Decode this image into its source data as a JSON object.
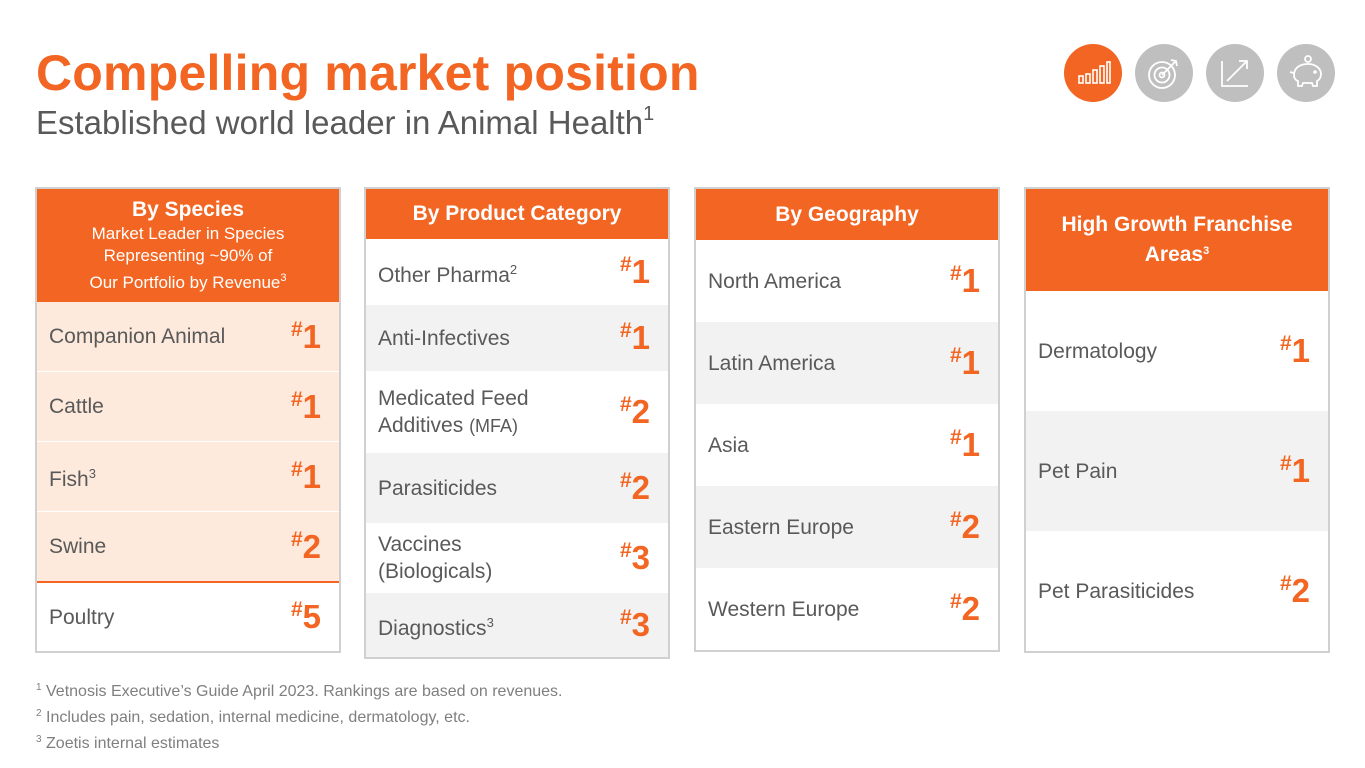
{
  "title": "Compelling market position",
  "subtitle": {
    "text": "Established world leader in Animal Health",
    "sup": "1"
  },
  "nav_icons": [
    {
      "name": "bar-chart-icon",
      "active": true
    },
    {
      "name": "target-icon",
      "active": false
    },
    {
      "name": "growth-arrow-icon",
      "active": false
    },
    {
      "name": "piggy-bank-icon",
      "active": false
    }
  ],
  "hash": "#",
  "species": {
    "heading": "By Species",
    "sub1": "Market Leader in Species",
    "sub2": "Representing ~90% of",
    "sub3": "Our Portfolio by Revenue",
    "sub3_sup": "3",
    "rows": [
      {
        "label": "Companion Animal",
        "rank": "1"
      },
      {
        "label": "Cattle",
        "rank": "1"
      },
      {
        "label": "Fish",
        "sup": "3",
        "rank": "1"
      },
      {
        "label": "Swine",
        "rank": "2"
      },
      {
        "label": "Poultry",
        "rank": "5"
      }
    ]
  },
  "product": {
    "heading": "By Product Category",
    "rows": [
      {
        "label": "Other Pharma",
        "sup": "2",
        "rank": "1"
      },
      {
        "label": "Anti-Infectives",
        "rank": "1"
      },
      {
        "label1": "Medicated Feed",
        "label2": "Additives",
        "label2_small": "(MFA)",
        "rank": "2"
      },
      {
        "label": "Parasiticides",
        "rank": "2"
      },
      {
        "label1": "Vaccines",
        "label2": "(Biologicals)",
        "rank": "3"
      },
      {
        "label": "Diagnostics",
        "sup": "3",
        "rank": "3"
      }
    ]
  },
  "geography": {
    "heading": "By Geography",
    "rows": [
      {
        "label": "North America",
        "rank": "1"
      },
      {
        "label": "Latin America",
        "rank": "1"
      },
      {
        "label": "Asia",
        "rank": "1"
      },
      {
        "label": "Eastern Europe",
        "rank": "2"
      },
      {
        "label": "Western Europe",
        "rank": "2"
      }
    ]
  },
  "franchise": {
    "heading1": "High Growth Franchise",
    "heading2": "Areas",
    "heading_sup": "3",
    "rows": [
      {
        "label": "Dermatology",
        "rank": "1"
      },
      {
        "label": "Pet Pain",
        "rank": "1"
      },
      {
        "label": "Pet Parasiticides",
        "rank": "2"
      }
    ]
  },
  "footnotes": [
    {
      "num": "1",
      "text": "Vetnosis Executive’s Guide April 2023. Rankings are based on revenues."
    },
    {
      "num": "2",
      "text": "Includes pain, sedation, internal medicine, dermatology, etc."
    },
    {
      "num": "3",
      "text": "Zoetis internal estimates"
    }
  ],
  "colors": {
    "accent": "#F26522",
    "peach": "#FDEADD",
    "row_gray": "#F2F2F2",
    "icon_gray": "#BFBFBF",
    "text": "#595959"
  }
}
